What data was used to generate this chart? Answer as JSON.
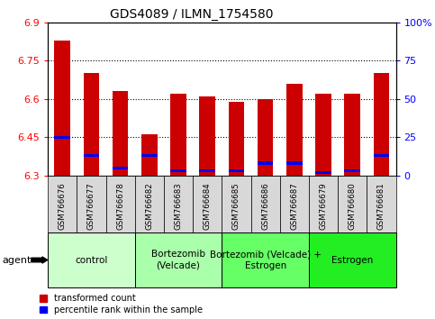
{
  "title": "GDS4089 / ILMN_1754580",
  "samples": [
    "GSM766676",
    "GSM766677",
    "GSM766678",
    "GSM766682",
    "GSM766683",
    "GSM766684",
    "GSM766685",
    "GSM766686",
    "GSM766687",
    "GSM766679",
    "GSM766680",
    "GSM766681"
  ],
  "transformed_count": [
    6.83,
    6.7,
    6.63,
    6.46,
    6.62,
    6.61,
    6.59,
    6.6,
    6.66,
    6.62,
    6.62,
    6.7
  ],
  "percentile_rank": [
    25,
    13,
    5,
    13,
    3,
    3,
    3,
    8,
    8,
    2,
    3,
    13
  ],
  "y_min": 6.3,
  "y_max": 6.9,
  "y_ticks": [
    6.3,
    6.45,
    6.6,
    6.75,
    6.9
  ],
  "y_tick_labels": [
    "6.3",
    "6.45",
    "6.6",
    "6.75",
    "6.9"
  ],
  "right_y_ticks": [
    0,
    25,
    50,
    75,
    100
  ],
  "right_y_tick_labels": [
    "0",
    "25",
    "50",
    "75",
    "100%"
  ],
  "bar_color_red": "#cc0000",
  "bar_color_blue": "#0000ee",
  "groups": [
    {
      "label": "control",
      "start": 0,
      "end": 3,
      "color": "#ccffcc"
    },
    {
      "label": "Bortezomib\n(Velcade)",
      "start": 3,
      "end": 6,
      "color": "#aaffaa"
    },
    {
      "label": "Bortezomib (Velcade) +\nEstrogen",
      "start": 6,
      "end": 9,
      "color": "#66ff66"
    },
    {
      "label": "Estrogen",
      "start": 9,
      "end": 12,
      "color": "#22ee22"
    }
  ],
  "agent_label": "agent",
  "legend_red": "transformed count",
  "legend_blue": "percentile rank within the sample",
  "bar_width": 0.55
}
